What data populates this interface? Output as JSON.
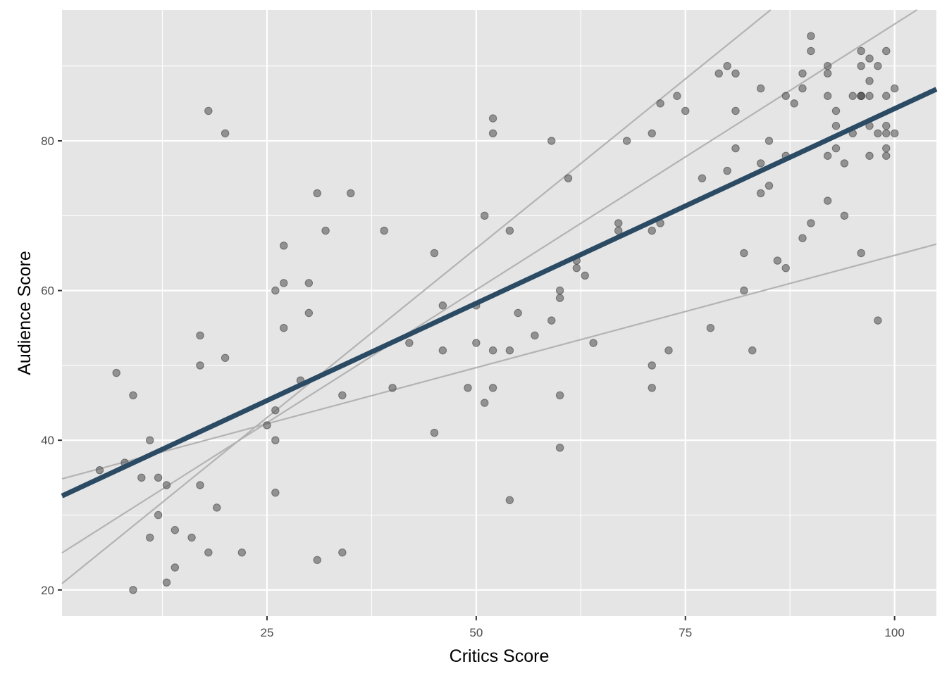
{
  "chart_data": {
    "type": "scatter",
    "title": "",
    "xlabel": "Critics Score",
    "ylabel": "Audience Score",
    "xlim": [
      0.5,
      105
    ],
    "ylim": [
      16.5,
      97.5
    ],
    "x_ticks": [
      25,
      50,
      75,
      100
    ],
    "y_ticks": [
      20,
      40,
      60,
      80
    ],
    "x_tick_labels": [
      "25",
      "50",
      "75",
      "100"
    ],
    "y_tick_labels": [
      "20",
      "40",
      "60",
      "80"
    ],
    "grid": true,
    "legend": "none",
    "colors": {
      "panel": "#e5e5e5",
      "grid": "#ffffff",
      "points": "#595959",
      "fit_line": "#2b4a63",
      "bootstrap_lines": "#b3b3b3"
    },
    "points": [
      [
        5,
        36
      ],
      [
        7,
        49
      ],
      [
        8,
        37
      ],
      [
        9,
        20
      ],
      [
        9,
        46
      ],
      [
        10,
        35
      ],
      [
        11,
        27
      ],
      [
        11,
        40
      ],
      [
        12,
        30
      ],
      [
        12,
        35
      ],
      [
        13,
        21
      ],
      [
        13,
        34
      ],
      [
        14,
        23
      ],
      [
        14,
        28
      ],
      [
        16,
        27
      ],
      [
        17,
        34
      ],
      [
        17,
        50
      ],
      [
        17,
        54
      ],
      [
        18,
        25
      ],
      [
        18,
        84
      ],
      [
        19,
        31
      ],
      [
        20,
        51
      ],
      [
        20,
        81
      ],
      [
        22,
        25
      ],
      [
        25,
        42
      ],
      [
        26,
        33
      ],
      [
        26,
        40
      ],
      [
        26,
        44
      ],
      [
        26,
        60
      ],
      [
        27,
        55
      ],
      [
        27,
        61
      ],
      [
        27,
        66
      ],
      [
        29,
        48
      ],
      [
        30,
        57
      ],
      [
        30,
        61
      ],
      [
        31,
        24
      ],
      [
        31,
        73
      ],
      [
        32,
        68
      ],
      [
        34,
        25
      ],
      [
        34,
        46
      ],
      [
        35,
        73
      ],
      [
        39,
        68
      ],
      [
        40,
        47
      ],
      [
        42,
        53
      ],
      [
        45,
        41
      ],
      [
        45,
        65
      ],
      [
        46,
        52
      ],
      [
        46,
        58
      ],
      [
        49,
        47
      ],
      [
        50,
        53
      ],
      [
        50,
        58
      ],
      [
        51,
        45
      ],
      [
        51,
        70
      ],
      [
        52,
        47
      ],
      [
        52,
        52
      ],
      [
        52,
        81
      ],
      [
        52,
        83
      ],
      [
        54,
        32
      ],
      [
        54,
        52
      ],
      [
        54,
        68
      ],
      [
        55,
        57
      ],
      [
        57,
        54
      ],
      [
        59,
        56
      ],
      [
        59,
        80
      ],
      [
        60,
        39
      ],
      [
        60,
        46
      ],
      [
        60,
        59
      ],
      [
        60,
        60
      ],
      [
        61,
        75
      ],
      [
        62,
        63
      ],
      [
        62,
        64
      ],
      [
        63,
        62
      ],
      [
        64,
        53
      ],
      [
        67,
        68
      ],
      [
        67,
        69
      ],
      [
        68,
        80
      ],
      [
        71,
        47
      ],
      [
        71,
        50
      ],
      [
        71,
        68
      ],
      [
        71,
        81
      ],
      [
        72,
        69
      ],
      [
        72,
        85
      ],
      [
        73,
        52
      ],
      [
        74,
        86
      ],
      [
        75,
        84
      ],
      [
        77,
        75
      ],
      [
        78,
        55
      ],
      [
        79,
        89
      ],
      [
        80,
        76
      ],
      [
        80,
        90
      ],
      [
        81,
        79
      ],
      [
        81,
        84
      ],
      [
        81,
        89
      ],
      [
        82,
        60
      ],
      [
        82,
        65
      ],
      [
        83,
        52
      ],
      [
        84,
        73
      ],
      [
        84,
        77
      ],
      [
        84,
        87
      ],
      [
        85,
        74
      ],
      [
        85,
        80
      ],
      [
        86,
        64
      ],
      [
        87,
        63
      ],
      [
        87,
        78
      ],
      [
        87,
        86
      ],
      [
        88,
        85
      ],
      [
        89,
        67
      ],
      [
        89,
        87
      ],
      [
        89,
        89
      ],
      [
        90,
        69
      ],
      [
        90,
        92
      ],
      [
        90,
        94
      ],
      [
        92,
        72
      ],
      [
        92,
        78
      ],
      [
        92,
        86
      ],
      [
        92,
        89
      ],
      [
        92,
        90
      ],
      [
        93,
        79
      ],
      [
        93,
        82
      ],
      [
        93,
        84
      ],
      [
        94,
        70
      ],
      [
        94,
        77
      ],
      [
        95,
        81
      ],
      [
        95,
        86
      ],
      [
        96,
        65
      ],
      [
        96,
        86
      ],
      [
        96,
        86
      ],
      [
        96,
        86
      ],
      [
        96,
        90
      ],
      [
        96,
        92
      ],
      [
        97,
        78
      ],
      [
        97,
        82
      ],
      [
        97,
        86
      ],
      [
        97,
        88
      ],
      [
        97,
        91
      ],
      [
        98,
        56
      ],
      [
        98,
        81
      ],
      [
        98,
        90
      ],
      [
        99,
        78
      ],
      [
        99,
        79
      ],
      [
        99,
        81
      ],
      [
        99,
        82
      ],
      [
        99,
        86
      ],
      [
        99,
        92
      ],
      [
        100,
        81
      ],
      [
        100,
        87
      ]
    ],
    "fit_line": {
      "intercept": 32.3,
      "slope": 0.52
    },
    "bootstrap_lines": [
      {
        "intercept": 20.4,
        "slope": 0.905
      },
      {
        "intercept": 24.6,
        "slope": 0.71
      },
      {
        "intercept": 34.7,
        "slope": 0.3
      }
    ]
  }
}
